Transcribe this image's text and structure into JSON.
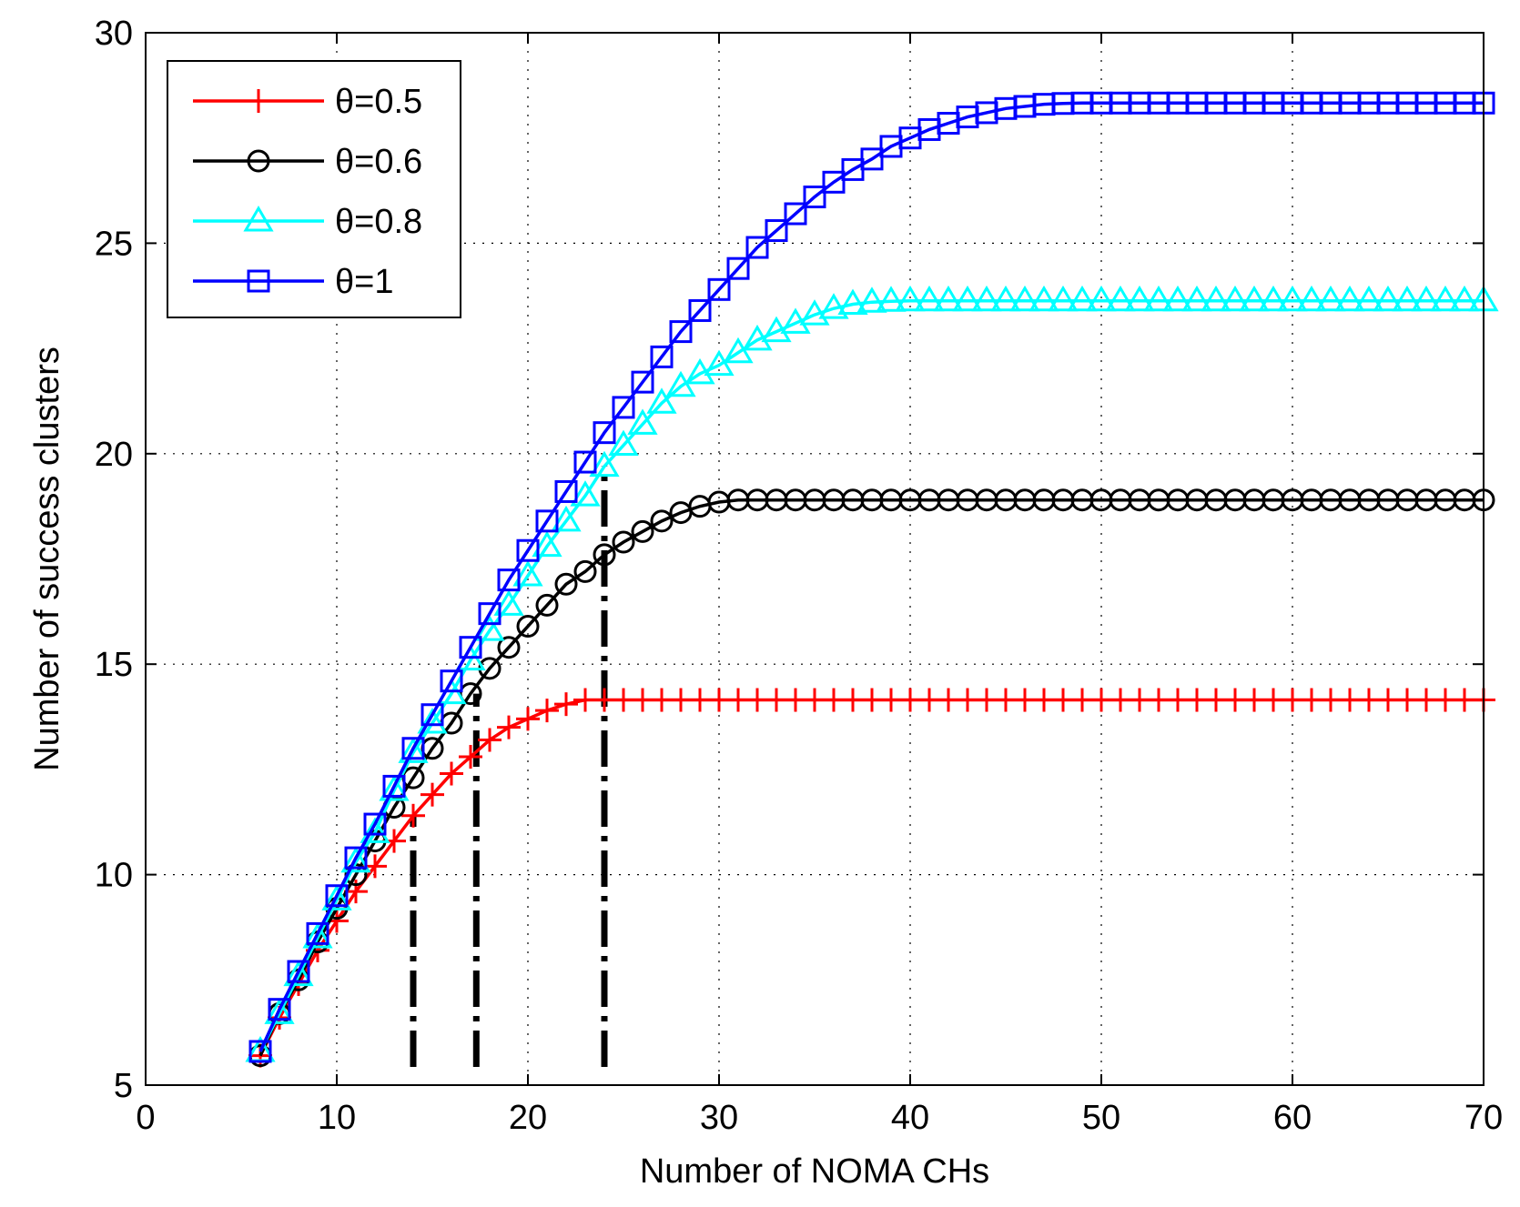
{
  "chart_data": {
    "type": "line",
    "title": "",
    "xlabel": "Number of NOMA CHs",
    "ylabel": "Number of success clusters",
    "xlim": [
      0,
      70
    ],
    "ylim": [
      5,
      30
    ],
    "xticks": [
      0,
      10,
      20,
      30,
      40,
      50,
      60,
      70
    ],
    "yticks": [
      5,
      10,
      15,
      20,
      25,
      30
    ],
    "grid": true,
    "legend_position": "top-left",
    "x": [
      6,
      7,
      8,
      9,
      10,
      11,
      12,
      13,
      14,
      15,
      16,
      17,
      18,
      19,
      20,
      21,
      22,
      23,
      24,
      25,
      26,
      27,
      28,
      29,
      30,
      31,
      32,
      33,
      34,
      35,
      36,
      37,
      38,
      39,
      40,
      41,
      42,
      43,
      44,
      45,
      46,
      47,
      48,
      49,
      50,
      51,
      52,
      53,
      54,
      55,
      56,
      57,
      58,
      59,
      60,
      61,
      62,
      63,
      64,
      65,
      66,
      67,
      68,
      69,
      70
    ],
    "series": [
      {
        "name": "θ=0.5",
        "color": "#ff0000",
        "marker": "plus",
        "values": [
          5.7,
          6.6,
          7.4,
          8.2,
          8.9,
          9.6,
          10.2,
          10.8,
          11.4,
          11.9,
          12.4,
          12.8,
          13.2,
          13.5,
          13.7,
          13.9,
          14.05,
          14.15,
          14.15,
          14.15,
          14.15,
          14.15,
          14.15,
          14.15,
          14.15,
          14.15,
          14.15,
          14.15,
          14.15,
          14.15,
          14.15,
          14.15,
          14.15,
          14.15,
          14.15,
          14.15,
          14.15,
          14.15,
          14.15,
          14.15,
          14.15,
          14.15,
          14.15,
          14.15,
          14.15,
          14.15,
          14.15,
          14.15,
          14.15,
          14.15,
          14.15,
          14.15,
          14.15,
          14.15,
          14.15,
          14.15,
          14.15,
          14.15,
          14.15,
          14.15,
          14.15,
          14.15,
          14.15,
          14.15,
          14.15
        ]
      },
      {
        "name": "θ=0.6",
        "color": "#000000",
        "marker": "circle",
        "values": [
          5.7,
          6.7,
          7.5,
          8.4,
          9.2,
          10.0,
          10.8,
          11.6,
          12.3,
          13.0,
          13.6,
          14.3,
          14.9,
          15.4,
          15.9,
          16.4,
          16.9,
          17.2,
          17.6,
          17.9,
          18.15,
          18.4,
          18.6,
          18.75,
          18.85,
          18.9,
          18.9,
          18.9,
          18.9,
          18.9,
          18.9,
          18.9,
          18.9,
          18.9,
          18.9,
          18.9,
          18.9,
          18.9,
          18.9,
          18.9,
          18.9,
          18.9,
          18.9,
          18.9,
          18.9,
          18.9,
          18.9,
          18.9,
          18.9,
          18.9,
          18.9,
          18.9,
          18.9,
          18.9,
          18.9,
          18.9,
          18.9,
          18.9,
          18.9,
          18.9,
          18.9,
          18.9,
          18.9,
          18.9,
          18.9
        ]
      },
      {
        "name": "θ=0.8",
        "color": "#00ffff",
        "marker": "triangle",
        "values": [
          5.8,
          6.7,
          7.6,
          8.5,
          9.4,
          10.3,
          11.0,
          12.0,
          12.9,
          13.6,
          14.3,
          15.1,
          15.8,
          16.4,
          17.1,
          17.8,
          18.4,
          19.0,
          19.7,
          20.2,
          20.7,
          21.2,
          21.6,
          21.9,
          22.1,
          22.4,
          22.7,
          22.9,
          23.1,
          23.3,
          23.45,
          23.55,
          23.6,
          23.62,
          23.63,
          23.63,
          23.63,
          23.63,
          23.63,
          23.63,
          23.63,
          23.63,
          23.63,
          23.63,
          23.63,
          23.63,
          23.63,
          23.63,
          23.63,
          23.63,
          23.63,
          23.63,
          23.63,
          23.63,
          23.63,
          23.63,
          23.63,
          23.63,
          23.63,
          23.63,
          23.63,
          23.63,
          23.63,
          23.63,
          23.63
        ]
      },
      {
        "name": "θ=1",
        "color": "#0000ff",
        "marker": "square",
        "values": [
          5.8,
          6.8,
          7.7,
          8.6,
          9.5,
          10.4,
          11.2,
          12.1,
          13.0,
          13.8,
          14.6,
          15.4,
          16.2,
          17.0,
          17.7,
          18.4,
          19.1,
          19.8,
          20.5,
          21.1,
          21.7,
          22.3,
          22.9,
          23.4,
          23.9,
          24.4,
          24.9,
          25.3,
          25.7,
          26.1,
          26.45,
          26.75,
          27.0,
          27.3,
          27.5,
          27.7,
          27.85,
          28.0,
          28.1,
          28.2,
          28.25,
          28.3,
          28.32,
          28.33,
          28.33,
          28.33,
          28.33,
          28.33,
          28.33,
          28.33,
          28.33,
          28.33,
          28.33,
          28.33,
          28.33,
          28.33,
          28.33,
          28.33,
          28.33,
          28.33,
          28.33,
          28.33,
          28.33,
          28.33,
          28.33
        ]
      }
    ],
    "reference_lines": [
      {
        "x": 14,
        "y_from": 5,
        "y_to": 11.4,
        "style": "dash-dot",
        "color": "#000000"
      },
      {
        "x": 17.3,
        "y_from": 5,
        "y_to": 14.3,
        "style": "dash-dot",
        "color": "#000000"
      },
      {
        "x": 24,
        "y_from": 5,
        "y_to": 19.7,
        "style": "dash-dot",
        "color": "#000000"
      }
    ]
  }
}
